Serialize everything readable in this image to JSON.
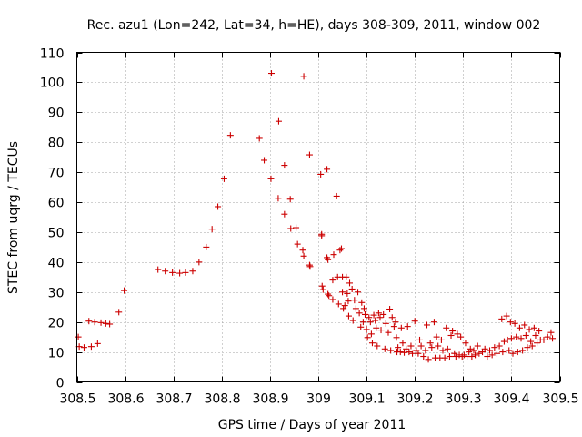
{
  "chart_data": {
    "type": "scatter",
    "title": "Rec. azu1 (Lon=242, Lat=34, h=HE), days 308-309, 2011, window 002",
    "xlabel": "GPS time / Days of year 2011",
    "ylabel": "STEC from uqrg / TECUs",
    "xlim": [
      308.5,
      309.5
    ],
    "ylim": [
      0,
      110
    ],
    "xticks": [
      308.5,
      308.6,
      308.7,
      308.8,
      308.9,
      309,
      309.1,
      309.2,
      309.3,
      309.4,
      309.5
    ],
    "xtick_labels": [
      "308.5",
      "308.6",
      "308.7",
      "308.8",
      "308.9",
      "309",
      "309.1",
      "309.2",
      "309.3",
      "309.4",
      "309.5"
    ],
    "yticks": [
      0,
      10,
      20,
      30,
      40,
      50,
      60,
      70,
      80,
      90,
      100,
      110
    ],
    "ytick_labels": [
      "0",
      "10",
      "20",
      "30",
      "40",
      "50",
      "60",
      "70",
      "80",
      "90",
      "100",
      "110"
    ],
    "grid": true,
    "legend": "none",
    "marker": "+",
    "color": "#cc0000",
    "points": [
      [
        308.503,
        15.0
      ],
      [
        308.505,
        11.8
      ],
      [
        308.515,
        11.5
      ],
      [
        308.525,
        20.3
      ],
      [
        308.53,
        11.8
      ],
      [
        308.537,
        20.0
      ],
      [
        308.543,
        12.8
      ],
      [
        308.55,
        19.8
      ],
      [
        308.56,
        19.5
      ],
      [
        308.568,
        19.3
      ],
      [
        308.587,
        23.3
      ],
      [
        308.598,
        30.5
      ],
      [
        308.668,
        37.5
      ],
      [
        308.683,
        37.0
      ],
      [
        308.698,
        36.5
      ],
      [
        308.713,
        36.3
      ],
      [
        308.725,
        36.5
      ],
      [
        308.74,
        37.0
      ],
      [
        308.753,
        40.0
      ],
      [
        308.768,
        45.0
      ],
      [
        308.78,
        51.0
      ],
      [
        308.792,
        58.5
      ],
      [
        308.805,
        67.8
      ],
      [
        308.818,
        82.3
      ],
      [
        308.878,
        81.3
      ],
      [
        308.888,
        74.0
      ],
      [
        308.902,
        67.8
      ],
      [
        308.903,
        103.0
      ],
      [
        308.917,
        61.3
      ],
      [
        308.918,
        87.0
      ],
      [
        308.93,
        72.3
      ],
      [
        308.93,
        56.0
      ],
      [
        308.942,
        61.0
      ],
      [
        308.943,
        51.2
      ],
      [
        308.954,
        51.5
      ],
      [
        308.957,
        46.0
      ],
      [
        308.968,
        44.0
      ],
      [
        308.97,
        102.0
      ],
      [
        308.97,
        42.0
      ],
      [
        308.982,
        75.8
      ],
      [
        308.982,
        39.0
      ],
      [
        308.983,
        38.5
      ],
      [
        309.005,
        69.3
      ],
      [
        309.007,
        49.3
      ],
      [
        309.007,
        48.8
      ],
      [
        309.008,
        32.0
      ],
      [
        309.01,
        30.8
      ],
      [
        309.018,
        71.0
      ],
      [
        309.018,
        41.5
      ],
      [
        309.02,
        40.8
      ],
      [
        309.02,
        29.3
      ],
      [
        309.022,
        28.8
      ],
      [
        309.03,
        34.0
      ],
      [
        309.03,
        27.5
      ],
      [
        309.032,
        42.5
      ],
      [
        309.038,
        62.0
      ],
      [
        309.04,
        35.0
      ],
      [
        309.042,
        26.0
      ],
      [
        309.045,
        44.0
      ],
      [
        309.048,
        44.5
      ],
      [
        309.05,
        35.0
      ],
      [
        309.05,
        30.0
      ],
      [
        309.052,
        24.5
      ],
      [
        309.055,
        25.5
      ],
      [
        309.058,
        35.0
      ],
      [
        309.06,
        29.5
      ],
      [
        309.062,
        27.0
      ],
      [
        309.063,
        22.0
      ],
      [
        309.065,
        33.0
      ],
      [
        309.07,
        31.0
      ],
      [
        309.072,
        20.5
      ],
      [
        309.075,
        27.3
      ],
      [
        309.078,
        24.5
      ],
      [
        309.082,
        30.0
      ],
      [
        309.085,
        23.0
      ],
      [
        309.088,
        18.3
      ],
      [
        309.09,
        26.5
      ],
      [
        309.093,
        20.0
      ],
      [
        309.095,
        24.5
      ],
      [
        309.097,
        22.5
      ],
      [
        309.1,
        17.5
      ],
      [
        309.102,
        14.8
      ],
      [
        309.105,
        21.5
      ],
      [
        309.108,
        20.0
      ],
      [
        309.11,
        16.0
      ],
      [
        309.112,
        13.0
      ],
      [
        309.115,
        22.3
      ],
      [
        309.118,
        20.5
      ],
      [
        309.12,
        18.0
      ],
      [
        309.122,
        12.0
      ],
      [
        309.125,
        23.0
      ],
      [
        309.128,
        21.5
      ],
      [
        309.13,
        17.3
      ],
      [
        309.135,
        22.5
      ],
      [
        309.138,
        11.0
      ],
      [
        309.14,
        19.5
      ],
      [
        309.145,
        16.5
      ],
      [
        309.148,
        24.3
      ],
      [
        309.15,
        10.5
      ],
      [
        309.153,
        21.5
      ],
      [
        309.157,
        18.5
      ],
      [
        309.16,
        20.0
      ],
      [
        309.162,
        14.8
      ],
      [
        309.163,
        10.0
      ],
      [
        309.165,
        11.5
      ],
      [
        309.17,
        10.0
      ],
      [
        309.172,
        18.0
      ],
      [
        309.175,
        13.0
      ],
      [
        309.178,
        9.8
      ],
      [
        309.182,
        11.0
      ],
      [
        309.185,
        18.5
      ],
      [
        309.188,
        10.0
      ],
      [
        309.192,
        12.0
      ],
      [
        309.195,
        9.5
      ],
      [
        309.2,
        20.3
      ],
      [
        309.203,
        10.5
      ],
      [
        309.207,
        9.5
      ],
      [
        309.21,
        14.0
      ],
      [
        309.213,
        12.0
      ],
      [
        309.218,
        8.5
      ],
      [
        309.222,
        10.5
      ],
      [
        309.225,
        19.0
      ],
      [
        309.228,
        7.5
      ],
      [
        309.232,
        13.0
      ],
      [
        309.235,
        11.5
      ],
      [
        309.24,
        20.0
      ],
      [
        309.242,
        8.0
      ],
      [
        309.245,
        15.0
      ],
      [
        309.248,
        12.0
      ],
      [
        309.252,
        8.0
      ],
      [
        309.255,
        14.0
      ],
      [
        309.258,
        10.5
      ],
      [
        309.262,
        8.0
      ],
      [
        309.265,
        18.0
      ],
      [
        309.268,
        11.0
      ],
      [
        309.272,
        8.5
      ],
      [
        309.275,
        15.5
      ],
      [
        309.278,
        17.0
      ],
      [
        309.282,
        9.5
      ],
      [
        309.285,
        8.5
      ],
      [
        309.288,
        16.0
      ],
      [
        309.292,
        9.0
      ],
      [
        309.295,
        15.0
      ],
      [
        309.298,
        8.5
      ],
      [
        309.302,
        9.0
      ],
      [
        309.305,
        13.0
      ],
      [
        309.308,
        8.5
      ],
      [
        309.312,
        10.0
      ],
      [
        309.315,
        11.0
      ],
      [
        309.318,
        8.5
      ],
      [
        309.322,
        10.5
      ],
      [
        309.325,
        9.0
      ],
      [
        309.33,
        12.0
      ],
      [
        309.333,
        9.5
      ],
      [
        309.34,
        10.0
      ],
      [
        309.345,
        11.0
      ],
      [
        309.35,
        8.5
      ],
      [
        309.355,
        10.5
      ],
      [
        309.36,
        9.0
      ],
      [
        309.365,
        11.5
      ],
      [
        309.37,
        9.5
      ],
      [
        309.375,
        12.0
      ],
      [
        309.38,
        21.0
      ],
      [
        309.382,
        10.0
      ],
      [
        309.385,
        13.5
      ],
      [
        309.39,
        22.0
      ],
      [
        309.392,
        14.0
      ],
      [
        309.395,
        10.5
      ],
      [
        309.398,
        20.0
      ],
      [
        309.4,
        14.5
      ],
      [
        309.403,
        9.5
      ],
      [
        309.407,
        19.5
      ],
      [
        309.41,
        15.0
      ],
      [
        309.413,
        10.0
      ],
      [
        309.417,
        18.0
      ],
      [
        309.42,
        14.5
      ],
      [
        309.423,
        10.5
      ],
      [
        309.427,
        19.0
      ],
      [
        309.43,
        15.5
      ],
      [
        309.433,
        11.5
      ],
      [
        309.437,
        17.5
      ],
      [
        309.44,
        13.5
      ],
      [
        309.443,
        12.0
      ],
      [
        309.447,
        18.0
      ],
      [
        309.45,
        15.5
      ],
      [
        309.453,
        13.0
      ],
      [
        309.457,
        17.0
      ],
      [
        309.46,
        14.0
      ],
      [
        309.467,
        14.0
      ],
      [
        309.475,
        15.0
      ],
      [
        309.482,
        16.5
      ],
      [
        309.485,
        14.5
      ]
    ]
  }
}
